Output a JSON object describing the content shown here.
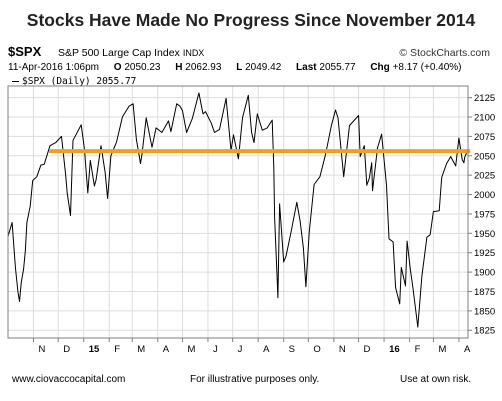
{
  "header": {
    "title": "Stocks Have Made No Progress Since November 2014",
    "symbol": "$SPX",
    "index_name": "S&P 500 Large Cap Index",
    "exchange": "INDX",
    "source": "© StockCharts.com",
    "date": "11-Apr-2016 1:06pm",
    "open_label": "O",
    "open": "2050.23",
    "high_label": "H",
    "high": "2062.93",
    "low_label": "L",
    "low": "2049.42",
    "last_label": "Last",
    "last": "2055.77",
    "chg_label": "Chg",
    "chg": "+8.17 (+0.40%)"
  },
  "legend": {
    "series_label": "$SPX (Daily) 2055.77"
  },
  "footer": {
    "left": "www.ciovaccocapital.com",
    "center": "For illustrative purposes only.",
    "right": "Use at own risk."
  },
  "colors": {
    "price_line": "#000000",
    "reference_line": "#f0a020",
    "grid": "#dddddd",
    "axis": "#808080"
  },
  "chart_data": {
    "type": "line",
    "title": "Stocks Have Made No Progress Since November 2014",
    "ylim": [
      1815,
      2140
    ],
    "yticks": [
      1825,
      1850,
      1875,
      1900,
      1925,
      1950,
      1975,
      2000,
      2025,
      2050,
      2075,
      2100,
      2125
    ],
    "xlim": [
      "2014-10-01",
      "2016-04-12"
    ],
    "x_ticks": [
      {
        "label": "N",
        "date": "2014-11-01"
      },
      {
        "label": "D",
        "date": "2014-12-01"
      },
      {
        "label": "15",
        "date": "2015-01-01"
      },
      {
        "label": "F",
        "date": "2015-02-01"
      },
      {
        "label": "M",
        "date": "2015-03-01"
      },
      {
        "label": "A",
        "date": "2015-04-01"
      },
      {
        "label": "M",
        "date": "2015-05-01"
      },
      {
        "label": "J",
        "date": "2015-06-01"
      },
      {
        "label": "J",
        "date": "2015-07-01"
      },
      {
        "label": "A",
        "date": "2015-08-01"
      },
      {
        "label": "S",
        "date": "2015-09-01"
      },
      {
        "label": "O",
        "date": "2015-10-01"
      },
      {
        "label": "N",
        "date": "2015-11-01"
      },
      {
        "label": "D",
        "date": "2015-12-01"
      },
      {
        "label": "16",
        "date": "2016-01-01"
      },
      {
        "label": "F",
        "date": "2016-02-01"
      },
      {
        "label": "M",
        "date": "2016-03-01"
      },
      {
        "label": "A",
        "date": "2016-04-01"
      }
    ],
    "grid": true,
    "reference_line": {
      "y": 2056,
      "start": "2014-11-20",
      "end": "2016-04-11"
    },
    "series": [
      {
        "name": "$SPX (Daily)",
        "points": [
          [
            "2014-10-01",
            1946
          ],
          [
            "2014-10-06",
            1964
          ],
          [
            "2014-10-10",
            1906
          ],
          [
            "2014-10-13",
            1875
          ],
          [
            "2014-10-15",
            1862
          ],
          [
            "2014-10-17",
            1886
          ],
          [
            "2014-10-20",
            1904
          ],
          [
            "2014-10-22",
            1927
          ],
          [
            "2014-10-24",
            1964
          ],
          [
            "2014-10-28",
            1985
          ],
          [
            "2014-10-31",
            2018
          ],
          [
            "2014-11-05",
            2023
          ],
          [
            "2014-11-10",
            2038
          ],
          [
            "2014-11-14",
            2039
          ],
          [
            "2014-11-21",
            2063
          ],
          [
            "2014-11-28",
            2067
          ],
          [
            "2014-12-05",
            2075
          ],
          [
            "2014-12-10",
            2026
          ],
          [
            "2014-12-12",
            2002
          ],
          [
            "2014-12-16",
            1973
          ],
          [
            "2014-12-19",
            2070
          ],
          [
            "2014-12-29",
            2090
          ],
          [
            "2015-01-02",
            2058
          ],
          [
            "2015-01-06",
            2002
          ],
          [
            "2015-01-09",
            2044
          ],
          [
            "2015-01-14",
            2011
          ],
          [
            "2015-01-16",
            2019
          ],
          [
            "2015-01-22",
            2063
          ],
          [
            "2015-01-27",
            2029
          ],
          [
            "2015-01-30",
            1995
          ],
          [
            "2015-02-03",
            2050
          ],
          [
            "2015-02-10",
            2068
          ],
          [
            "2015-02-17",
            2100
          ],
          [
            "2015-02-25",
            2114
          ],
          [
            "2015-03-02",
            2117
          ],
          [
            "2015-03-06",
            2071
          ],
          [
            "2015-03-11",
            2040
          ],
          [
            "2015-03-13",
            2053
          ],
          [
            "2015-03-18",
            2099
          ],
          [
            "2015-03-25",
            2061
          ],
          [
            "2015-03-30",
            2086
          ],
          [
            "2015-04-06",
            2080
          ],
          [
            "2015-04-14",
            2095
          ],
          [
            "2015-04-17",
            2081
          ],
          [
            "2015-04-24",
            2117
          ],
          [
            "2015-04-28",
            2114
          ],
          [
            "2015-05-01",
            2108
          ],
          [
            "2015-05-06",
            2080
          ],
          [
            "2015-05-13",
            2098
          ],
          [
            "2015-05-21",
            2131
          ],
          [
            "2015-05-26",
            2104
          ],
          [
            "2015-05-29",
            2107
          ],
          [
            "2015-06-05",
            2092
          ],
          [
            "2015-06-09",
            2080
          ],
          [
            "2015-06-15",
            2084
          ],
          [
            "2015-06-23",
            2124
          ],
          [
            "2015-06-29",
            2057
          ],
          [
            "2015-07-02",
            2077
          ],
          [
            "2015-07-08",
            2046
          ],
          [
            "2015-07-13",
            2099
          ],
          [
            "2015-07-20",
            2128
          ],
          [
            "2015-07-24",
            2080
          ],
          [
            "2015-07-27",
            2067
          ],
          [
            "2015-07-31",
            2104
          ],
          [
            "2015-08-06",
            2083
          ],
          [
            "2015-08-12",
            2086
          ],
          [
            "2015-08-18",
            2096
          ],
          [
            "2015-08-20",
            2035
          ],
          [
            "2015-08-21",
            1971
          ],
          [
            "2015-08-24",
            1893
          ],
          [
            "2015-08-25",
            1867
          ],
          [
            "2015-08-27",
            1988
          ],
          [
            "2015-09-01",
            1913
          ],
          [
            "2015-09-04",
            1921
          ],
          [
            "2015-09-10",
            1952
          ],
          [
            "2015-09-17",
            1990
          ],
          [
            "2015-09-21",
            1966
          ],
          [
            "2015-09-25",
            1931
          ],
          [
            "2015-09-28",
            1881
          ],
          [
            "2015-10-02",
            1951
          ],
          [
            "2015-10-08",
            2013
          ],
          [
            "2015-10-15",
            2023
          ],
          [
            "2015-10-22",
            2052
          ],
          [
            "2015-10-29",
            2089
          ],
          [
            "2015-11-03",
            2109
          ],
          [
            "2015-11-06",
            2099
          ],
          [
            "2015-11-13",
            2023
          ],
          [
            "2015-11-20",
            2089
          ],
          [
            "2015-12-01",
            2102
          ],
          [
            "2015-12-03",
            2049
          ],
          [
            "2015-12-08",
            2063
          ],
          [
            "2015-12-11",
            2012
          ],
          [
            "2015-12-14",
            2021
          ],
          [
            "2015-12-17",
            2041
          ],
          [
            "2015-12-18",
            2005
          ],
          [
            "2015-12-24",
            2060
          ],
          [
            "2015-12-29",
            2078
          ],
          [
            "2016-01-04",
            2012
          ],
          [
            "2016-01-07",
            1943
          ],
          [
            "2016-01-12",
            1939
          ],
          [
            "2016-01-15",
            1880
          ],
          [
            "2016-01-20",
            1859
          ],
          [
            "2016-01-22",
            1906
          ],
          [
            "2016-01-27",
            1882
          ],
          [
            "2016-01-29",
            1940
          ],
          [
            "2016-02-02",
            1903
          ],
          [
            "2016-02-05",
            1880
          ],
          [
            "2016-02-11",
            1829
          ],
          [
            "2016-02-16",
            1895
          ],
          [
            "2016-02-22",
            1945
          ],
          [
            "2016-02-26",
            1948
          ],
          [
            "2016-03-01",
            1978
          ],
          [
            "2016-03-08",
            1979
          ],
          [
            "2016-03-11",
            2022
          ],
          [
            "2016-03-17",
            2040
          ],
          [
            "2016-03-22",
            2049
          ],
          [
            "2016-03-28",
            2037
          ],
          [
            "2016-04-01",
            2073
          ],
          [
            "2016-04-05",
            2045
          ],
          [
            "2016-04-07",
            2041
          ],
          [
            "2016-04-08",
            2048
          ],
          [
            "2016-04-11",
            2055.77
          ]
        ]
      }
    ]
  }
}
